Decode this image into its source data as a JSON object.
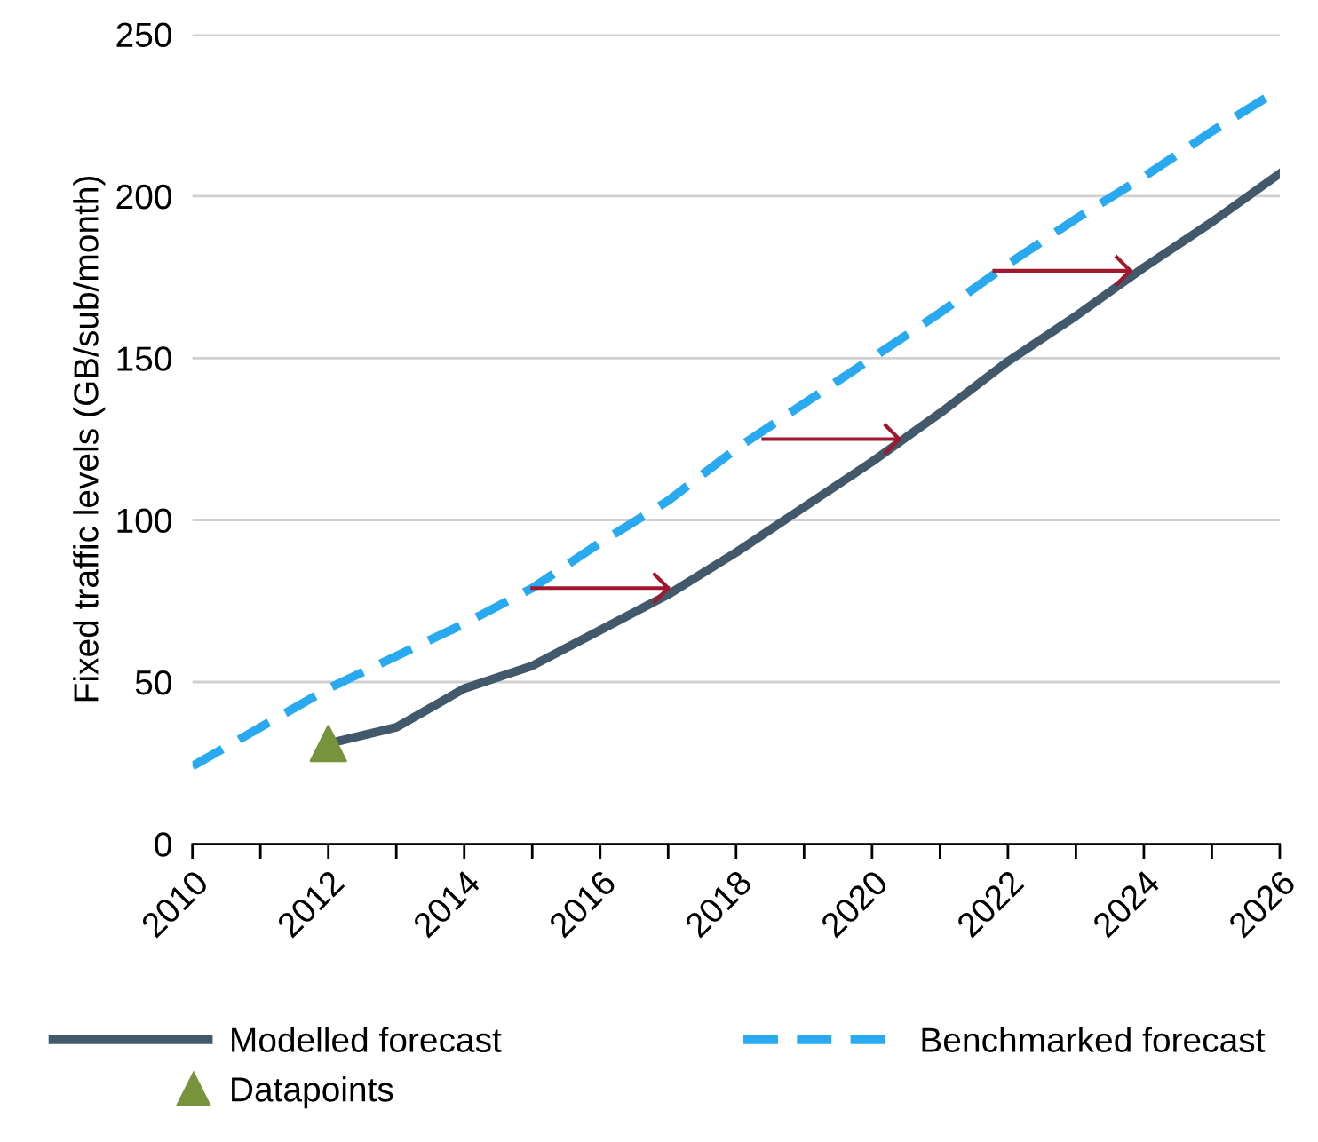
{
  "chart_data": {
    "type": "line",
    "ylabel": "Fixed traffic levels (GB/sub/month)",
    "xlim": [
      2010,
      2026
    ],
    "ylim": [
      0,
      250
    ],
    "xticks": [
      2010,
      {
        "value": 2011,
        "label": null
      },
      2012,
      {
        "value": 2013,
        "label": null
      },
      2014,
      {
        "value": 2015,
        "label": null
      },
      2016,
      {
        "value": 2017,
        "label": null
      },
      2018,
      {
        "value": 2019,
        "label": null
      },
      2020,
      {
        "value": 2021,
        "label": null
      },
      2022,
      {
        "value": 2023,
        "label": null
      },
      2024,
      {
        "value": 2025,
        "label": null
      },
      2026
    ],
    "yticks": [
      0,
      50,
      100,
      150,
      200,
      250
    ],
    "grid": "y",
    "legend": "bottom",
    "series": [
      {
        "name": "Modelled forecast",
        "color": "#41596b",
        "line_style": "solid",
        "x": [
          2012,
          2013,
          2014,
          2015,
          2016,
          2017,
          2018,
          2019,
          2020,
          2021,
          2022,
          2023,
          2024,
          2025,
          2026
        ],
        "values": [
          31,
          36,
          48,
          55,
          66,
          77,
          90,
          104,
          118,
          133,
          149,
          163,
          178,
          192,
          207
        ]
      },
      {
        "name": "Benchmarked forecast",
        "color": "#29aaf0",
        "line_style": "dashed",
        "x": [
          2010,
          2012,
          2013,
          2014,
          2015,
          2016,
          2017,
          2018,
          2019,
          2020,
          2021,
          2022,
          2023,
          2024,
          2025,
          2026
        ],
        "values": [
          24,
          48,
          58,
          68,
          79,
          93,
          106,
          122,
          136,
          150,
          164,
          179,
          193,
          206,
          220,
          233
        ]
      },
      {
        "name": "Datapoints",
        "type": "scatter",
        "color": "#77933c",
        "marker": "triangle",
        "x": [
          2012
        ],
        "values": [
          31
        ]
      },
      {
        "type": "line",
        "line_style": "solid",
        "color": "#a0182e",
        "x": [
          2015,
          2017
        ],
        "values": [
          79,
          79
        ]
      },
      {
        "type": "line",
        "line_style": "solid",
        "color": "#a0182e",
        "x": [
          2018.4,
          2020.4
        ],
        "values": [
          125,
          125
        ]
      },
      {
        "type": "line",
        "line_style": "solid",
        "color": "#a0182e",
        "x": [
          2021.8,
          2023.8
        ],
        "values": [
          177,
          177
        ]
      }
    ]
  }
}
